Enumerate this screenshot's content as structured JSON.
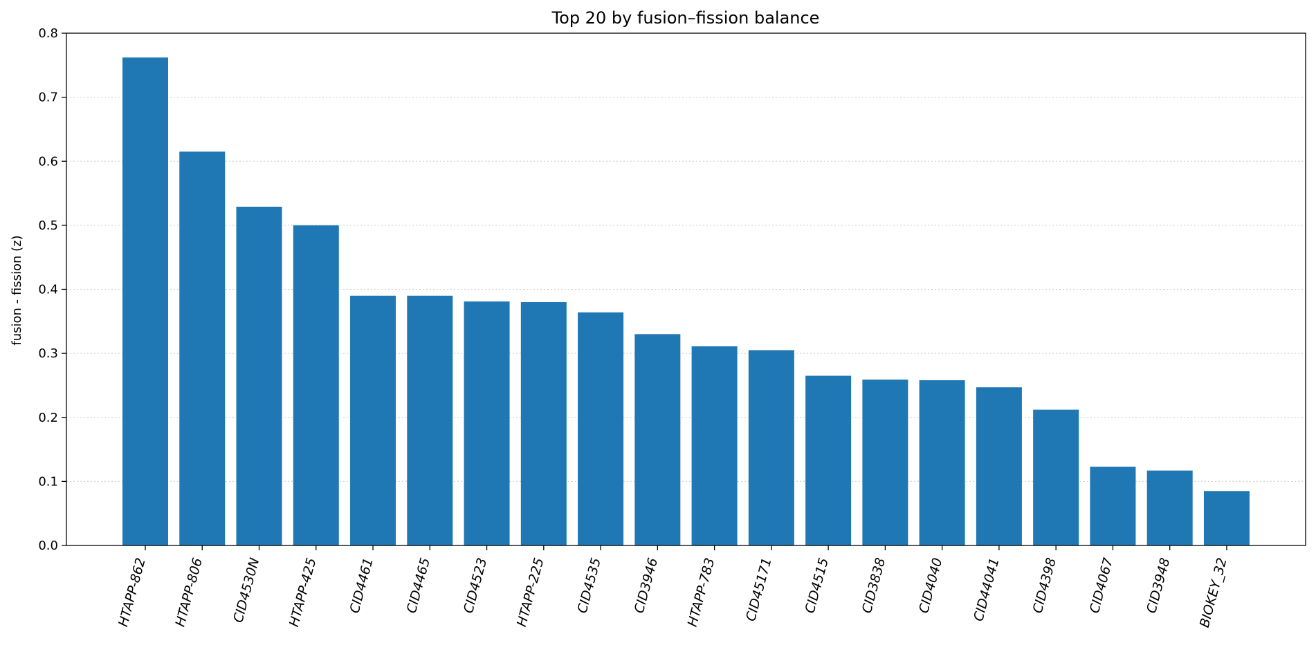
{
  "chart_data": {
    "type": "bar",
    "title": "Top 20 by fusion–fission balance",
    "xlabel": "",
    "ylabel": "fusion - fission (z)",
    "ylim": [
      0,
      0.8
    ],
    "yticks": [
      "0.0",
      "0.1",
      "0.2",
      "0.3",
      "0.4",
      "0.5",
      "0.6",
      "0.7",
      "0.8"
    ],
    "grid": "y dotted",
    "bar_color": "#1f77b4",
    "categories": [
      "HTAPP-862",
      "HTAPP-806",
      "CID4530N",
      "HTAPP-425",
      "CID4461",
      "CID4465",
      "CID4523",
      "HTAPP-225",
      "CID4535",
      "CID3946",
      "HTAPP-783",
      "CID45171",
      "CID4515",
      "CID3838",
      "CID4040",
      "CID44041",
      "CID4398",
      "CID4067",
      "CID3948",
      "BIOKEY_32"
    ],
    "values": [
      0.762,
      0.615,
      0.529,
      0.5,
      0.39,
      0.39,
      0.381,
      0.38,
      0.364,
      0.33,
      0.311,
      0.305,
      0.265,
      0.259,
      0.258,
      0.247,
      0.212,
      0.123,
      0.117,
      0.085
    ]
  }
}
